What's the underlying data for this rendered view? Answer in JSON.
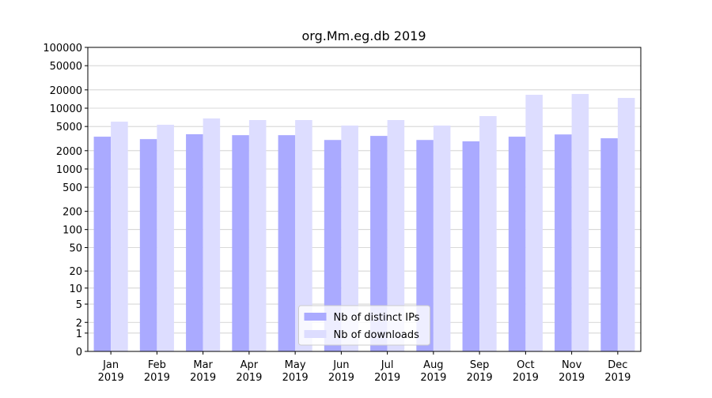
{
  "chart_data": {
    "type": "bar",
    "title": "org.Mm.eg.db 2019",
    "categories": [
      "Jan\n2019",
      "Feb\n2019",
      "Mar\n2019",
      "Apr\n2019",
      "May\n2019",
      "Jun\n2019",
      "Jul\n2019",
      "Aug\n2019",
      "Sep\n2019",
      "Oct\n2019",
      "Nov\n2019",
      "Dec\n2019"
    ],
    "series": [
      {
        "name": "Nb of distinct IPs",
        "color": "#aaaaff",
        "values": [
          3400,
          3100,
          3730,
          3600,
          3600,
          3000,
          3500,
          3000,
          2850,
          3400,
          3700,
          3200
        ]
      },
      {
        "name": "Nb of downloads",
        "color": "#ddddff",
        "values": [
          6000,
          5340,
          6780,
          6380,
          6380,
          5180,
          6380,
          5180,
          7420,
          16600,
          17100,
          14750
        ]
      }
    ],
    "yscale": "log1p",
    "ylim": [
      0,
      100000
    ],
    "yticks": [
      0,
      1,
      2,
      5,
      10,
      20,
      50,
      100,
      200,
      500,
      1000,
      2000,
      5000,
      10000,
      20000,
      50000,
      100000
    ],
    "grid": true,
    "legend": "lower center"
  }
}
